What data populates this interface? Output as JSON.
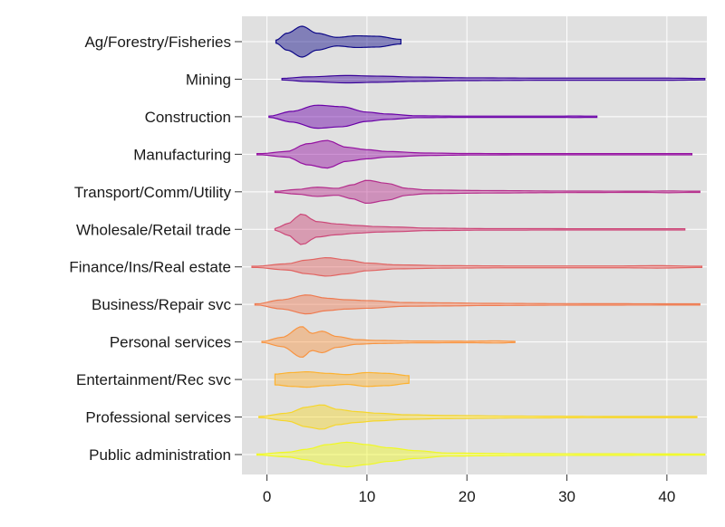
{
  "chart_data": {
    "type": "violin",
    "orientation": "horizontal",
    "title": "",
    "xlabel": "",
    "ylabel": "",
    "xlim": [
      -2.5,
      44
    ],
    "xticks": [
      0,
      10,
      20,
      30,
      40
    ],
    "grid": true,
    "background": "#e0e0e0",
    "gridColor": "#ffffff",
    "categories": [
      {
        "name": "Ag/Forestry/Fisheries",
        "color": "#0d0887",
        "min": 0.9,
        "max": 13.4,
        "density": [
          [
            0.9,
            0.1
          ],
          [
            2,
            0.55
          ],
          [
            3.5,
            1.0
          ],
          [
            5,
            0.55
          ],
          [
            7,
            0.28
          ],
          [
            9,
            0.38
          ],
          [
            11,
            0.35
          ],
          [
            13.4,
            0.15
          ]
        ]
      },
      {
        "name": "Mining",
        "color": "#3a049a",
        "min": 1.5,
        "max": 43.8,
        "density": [
          [
            1.5,
            0.05
          ],
          [
            4,
            0.15
          ],
          [
            8,
            0.24
          ],
          [
            11,
            0.2
          ],
          [
            15,
            0.14
          ],
          [
            20,
            0.09
          ],
          [
            28,
            0.07
          ],
          [
            40,
            0.07
          ],
          [
            43.8,
            0.05
          ]
        ]
      },
      {
        "name": "Construction",
        "color": "#6a00a8",
        "min": 0.2,
        "max": 33,
        "density": [
          [
            0.2,
            0.04
          ],
          [
            2.5,
            0.35
          ],
          [
            5,
            0.75
          ],
          [
            7.5,
            0.65
          ],
          [
            10,
            0.3
          ],
          [
            12,
            0.18
          ],
          [
            15,
            0.06
          ],
          [
            20,
            0.04
          ],
          [
            28,
            0.03
          ],
          [
            31,
            0.05
          ],
          [
            33,
            0.02
          ]
        ]
      },
      {
        "name": "Manufacturing",
        "color": "#9512a1",
        "min": -1,
        "max": 42.5,
        "density": [
          [
            -1,
            0.02
          ],
          [
            2,
            0.18
          ],
          [
            4,
            0.68
          ],
          [
            6,
            0.9
          ],
          [
            8,
            0.45
          ],
          [
            10,
            0.3
          ],
          [
            12,
            0.18
          ],
          [
            16,
            0.08
          ],
          [
            20,
            0.05
          ],
          [
            30,
            0.03
          ],
          [
            42.5,
            0.02
          ]
        ]
      },
      {
        "name": "Transport/Comm/Utility",
        "color": "#b52f8c",
        "min": 0.8,
        "max": 43.3,
        "density": [
          [
            0.8,
            0.03
          ],
          [
            3,
            0.15
          ],
          [
            5,
            0.3
          ],
          [
            7,
            0.22
          ],
          [
            8.5,
            0.45
          ],
          [
            10,
            0.75
          ],
          [
            12,
            0.55
          ],
          [
            14,
            0.22
          ],
          [
            16,
            0.12
          ],
          [
            22,
            0.08
          ],
          [
            30,
            0.05
          ],
          [
            38,
            0.04
          ],
          [
            40,
            0.06
          ],
          [
            43.3,
            0.03
          ]
        ]
      },
      {
        "name": "Wholesale/Retail trade",
        "color": "#cc4778",
        "min": 0.8,
        "max": 41.8,
        "density": [
          [
            0.8,
            0.05
          ],
          [
            2,
            0.35
          ],
          [
            3.5,
            1.0
          ],
          [
            5,
            0.5
          ],
          [
            7,
            0.35
          ],
          [
            9,
            0.25
          ],
          [
            11,
            0.18
          ],
          [
            13,
            0.15
          ],
          [
            16,
            0.08
          ],
          [
            22,
            0.05
          ],
          [
            41.8,
            0.03
          ]
        ]
      },
      {
        "name": "Finance/Ins/Real estate",
        "color": "#e16462",
        "min": -1.5,
        "max": 43.5,
        "density": [
          [
            -1.5,
            0.02
          ],
          [
            2,
            0.2
          ],
          [
            4,
            0.45
          ],
          [
            6,
            0.6
          ],
          [
            8,
            0.45
          ],
          [
            10,
            0.25
          ],
          [
            13,
            0.13
          ],
          [
            18,
            0.08
          ],
          [
            25,
            0.06
          ],
          [
            35,
            0.06
          ],
          [
            39,
            0.08
          ],
          [
            43.5,
            0.04
          ]
        ]
      },
      {
        "name": "Business/Repair svc",
        "color": "#ee7b51",
        "min": -1.2,
        "max": 43.3,
        "density": [
          [
            -1.2,
            0.02
          ],
          [
            1.5,
            0.3
          ],
          [
            4,
            0.62
          ],
          [
            6,
            0.4
          ],
          [
            8,
            0.3
          ],
          [
            10,
            0.25
          ],
          [
            14,
            0.12
          ],
          [
            18,
            0.1
          ],
          [
            22,
            0.07
          ],
          [
            30,
            0.05
          ],
          [
            43.3,
            0.04
          ]
        ]
      },
      {
        "name": "Personal services",
        "color": "#f89441",
        "min": -0.5,
        "max": 24.8,
        "density": [
          [
            -0.5,
            0.03
          ],
          [
            1.5,
            0.3
          ],
          [
            3.5,
            1.0
          ],
          [
            4.5,
            0.55
          ],
          [
            5.5,
            0.7
          ],
          [
            7,
            0.35
          ],
          [
            9,
            0.15
          ],
          [
            11,
            0.1
          ],
          [
            15,
            0.06
          ],
          [
            20,
            0.05
          ],
          [
            23,
            0.07
          ],
          [
            24.8,
            0.04
          ]
        ]
      },
      {
        "name": "Entertainment/Rec svc",
        "color": "#fdb22f",
        "min": 0.8,
        "max": 14.2,
        "density": [
          [
            0.8,
            0.35
          ],
          [
            2.5,
            0.45
          ],
          [
            4,
            0.5
          ],
          [
            6,
            0.4
          ],
          [
            8,
            0.32
          ],
          [
            10,
            0.45
          ],
          [
            12,
            0.4
          ],
          [
            14.2,
            0.25
          ]
        ]
      },
      {
        "name": "Professional services",
        "color": "#f6d62a",
        "min": -0.8,
        "max": 43,
        "density": [
          [
            -0.8,
            0.03
          ],
          [
            2,
            0.25
          ],
          [
            4,
            0.65
          ],
          [
            5.5,
            0.8
          ],
          [
            7,
            0.5
          ],
          [
            9,
            0.35
          ],
          [
            11,
            0.25
          ],
          [
            14,
            0.15
          ],
          [
            18,
            0.1
          ],
          [
            25,
            0.06
          ],
          [
            35,
            0.04
          ],
          [
            43,
            0.03
          ]
        ]
      },
      {
        "name": "Public administration",
        "color": "#f0f921",
        "min": -1,
        "max": 43.8,
        "density": [
          [
            -1,
            0.03
          ],
          [
            2,
            0.15
          ],
          [
            4,
            0.35
          ],
          [
            6,
            0.65
          ],
          [
            8,
            0.8
          ],
          [
            10,
            0.65
          ],
          [
            12,
            0.45
          ],
          [
            15,
            0.25
          ],
          [
            18,
            0.1
          ],
          [
            25,
            0.06
          ],
          [
            35,
            0.05
          ],
          [
            43.8,
            0.04
          ]
        ]
      }
    ]
  }
}
